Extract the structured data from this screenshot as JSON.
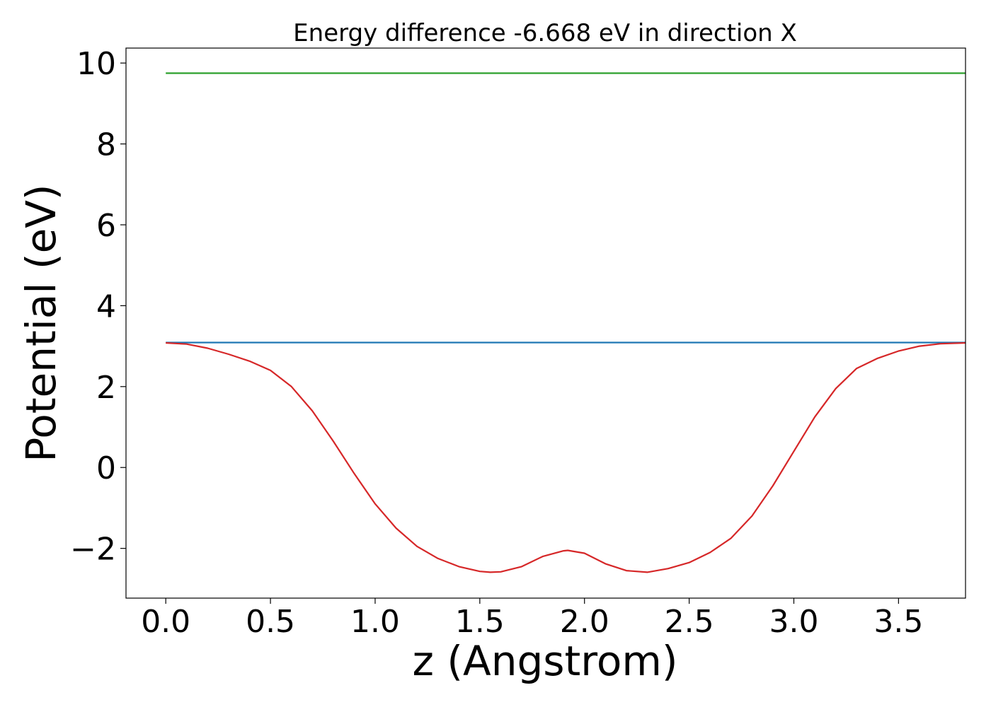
{
  "chart_data": {
    "type": "line",
    "title": "Energy difference -6.668 eV in direction X",
    "xlabel": "z (Angstrom)",
    "ylabel": "Potential (eV)",
    "xlim": [
      -0.19,
      3.82
    ],
    "ylim": [
      -3.23,
      10.37
    ],
    "xticks": [
      0.0,
      0.5,
      1.0,
      1.5,
      2.0,
      2.5,
      3.0,
      3.5
    ],
    "xtick_labels": [
      "0.0",
      "0.5",
      "1.0",
      "1.5",
      "2.0",
      "2.5",
      "3.0",
      "3.5"
    ],
    "yticks": [
      -2,
      0,
      2,
      4,
      6,
      8,
      10
    ],
    "ytick_labels": [
      "−2",
      "0",
      "2",
      "4",
      "6",
      "8",
      "10"
    ],
    "grid": false,
    "series": [
      {
        "color": "#2ca02c",
        "x": [
          0.0,
          3.82
        ],
        "y": [
          9.75,
          9.75
        ]
      },
      {
        "color": "#1f77b4",
        "x": [
          0.0,
          3.82
        ],
        "y": [
          3.09,
          3.09
        ]
      },
      {
        "color": "#d62728",
        "x": [
          0.0,
          0.1,
          0.2,
          0.3,
          0.4,
          0.5,
          0.6,
          0.7,
          0.8,
          0.9,
          1.0,
          1.1,
          1.2,
          1.3,
          1.4,
          1.5,
          1.55,
          1.6,
          1.7,
          1.8,
          1.9,
          1.92,
          2.0,
          2.1,
          2.2,
          2.3,
          2.4,
          2.5,
          2.6,
          2.7,
          2.8,
          2.9,
          3.0,
          3.1,
          3.2,
          3.3,
          3.4,
          3.5,
          3.6,
          3.7,
          3.82
        ],
        "y": [
          3.08,
          3.05,
          2.95,
          2.8,
          2.63,
          2.4,
          2.0,
          1.4,
          0.65,
          -0.15,
          -0.9,
          -1.5,
          -1.95,
          -2.25,
          -2.45,
          -2.57,
          -2.59,
          -2.58,
          -2.45,
          -2.2,
          -2.06,
          -2.05,
          -2.12,
          -2.38,
          -2.55,
          -2.59,
          -2.5,
          -2.35,
          -2.1,
          -1.75,
          -1.2,
          -0.45,
          0.4,
          1.25,
          1.95,
          2.45,
          2.7,
          2.88,
          3.0,
          3.06,
          3.08
        ]
      }
    ]
  }
}
